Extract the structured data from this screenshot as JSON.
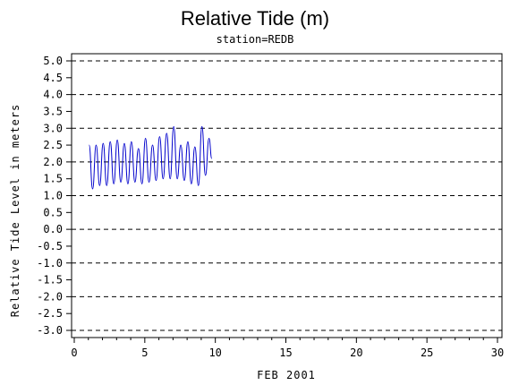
{
  "chart_data": {
    "type": "line",
    "title": "Relative Tide (m)",
    "subtitle": "station=REDB",
    "xlabel": "FEB 2001",
    "ylabel": "Relative Tide Level in meters",
    "xlim": [
      0,
      30
    ],
    "ylim": [
      -3.0,
      5.0
    ],
    "x_ticks": [
      0,
      5,
      10,
      15,
      20,
      25,
      30
    ],
    "y_ticks": [
      -3.0,
      -2.5,
      -2.0,
      -1.5,
      -1.0,
      -0.5,
      0.0,
      0.5,
      1.0,
      1.5,
      2.0,
      2.5,
      3.0,
      3.5,
      4.0,
      4.5,
      5.0
    ],
    "y_tick_labels": [
      "-3.0",
      "-2.5",
      "-2.0",
      "-1.5",
      "-1.0",
      "-0.5",
      "0.0",
      "0.5",
      "1.0",
      "1.5",
      "2.0",
      "2.5",
      "3.0",
      "3.5",
      "4.0",
      "4.5",
      "5.0"
    ],
    "gridlines_y": [
      -3.0,
      -2.0,
      -1.0,
      0.0,
      1.0,
      2.0,
      3.0,
      4.0,
      5.0
    ],
    "grid_style": "dashed horizontal",
    "series": [
      {
        "color": "#0000cc",
        "x": [
          1.05,
          1.3,
          1.55,
          1.8,
          2.05,
          2.3,
          2.55,
          2.8,
          3.05,
          3.3,
          3.55,
          3.8,
          4.05,
          4.3,
          4.55,
          4.8,
          5.05,
          5.3,
          5.55,
          5.8,
          6.05,
          6.3,
          6.55,
          6.8,
          7.05,
          7.3,
          7.55,
          7.8,
          8.05,
          8.3,
          8.55,
          8.8,
          9.05,
          9.3,
          9.55,
          9.75
        ],
        "y": [
          2.5,
          1.2,
          2.5,
          1.3,
          2.55,
          1.3,
          2.6,
          1.35,
          2.65,
          1.4,
          2.55,
          1.35,
          2.6,
          1.4,
          2.4,
          1.35,
          2.7,
          1.4,
          2.5,
          1.45,
          2.75,
          1.5,
          2.85,
          1.5,
          3.05,
          1.5,
          2.5,
          1.45,
          2.6,
          1.35,
          2.45,
          1.3,
          3.05,
          1.6,
          2.7,
          2.1
        ]
      }
    ]
  }
}
